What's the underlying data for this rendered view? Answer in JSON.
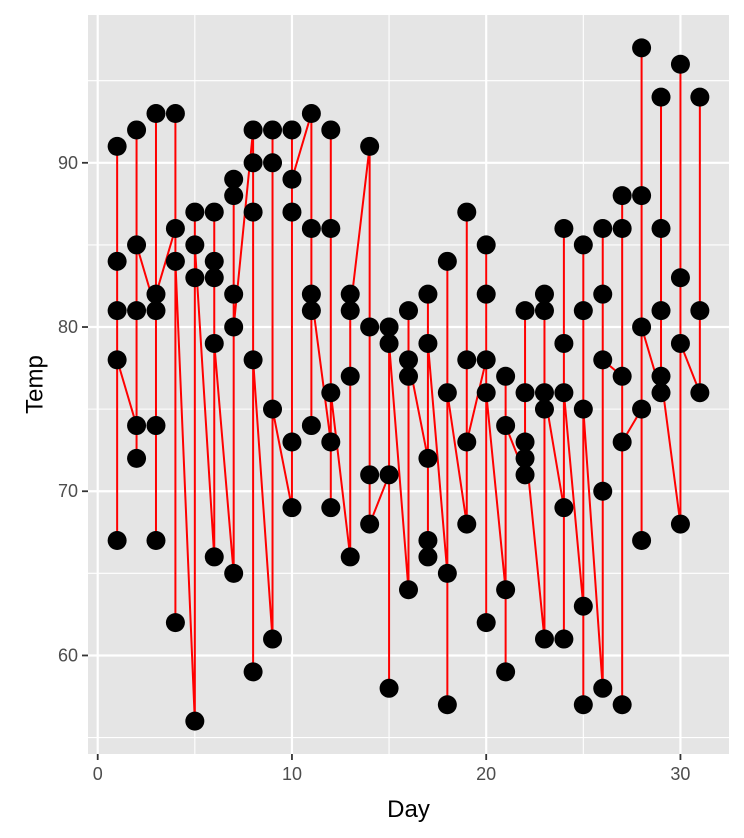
{
  "chart_data": {
    "type": "scatter",
    "title": "",
    "xlabel": "Day",
    "ylabel": "Temp",
    "xlim": [
      -0.5,
      32.5
    ],
    "ylim": [
      54.0,
      99.0
    ],
    "x_major_ticks": [
      0,
      10,
      20,
      30
    ],
    "x_minor_ticks": [
      5,
      15,
      25
    ],
    "y_major_ticks": [
      60,
      70,
      80,
      90
    ],
    "y_minor_ticks": [
      55,
      65,
      75,
      85,
      95
    ],
    "grid": true,
    "panel_color": "#e5e5e5",
    "grid_color": "#ffffff",
    "point_color": "#000000",
    "line_color": "#ff0000",
    "points": [
      [
        1,
        67
      ],
      [
        1,
        78
      ],
      [
        1,
        81
      ],
      [
        1,
        84
      ],
      [
        1,
        91
      ],
      [
        2,
        72
      ],
      [
        2,
        74
      ],
      [
        2,
        81
      ],
      [
        2,
        85
      ],
      [
        2,
        92
      ],
      [
        3,
        67
      ],
      [
        3,
        74
      ],
      [
        3,
        81
      ],
      [
        3,
        82
      ],
      [
        3,
        93
      ],
      [
        4,
        62
      ],
      [
        4,
        84
      ],
      [
        4,
        86
      ],
      [
        4,
        93
      ],
      [
        5,
        56
      ],
      [
        5,
        83
      ],
      [
        5,
        85
      ],
      [
        5,
        87
      ],
      [
        6,
        66
      ],
      [
        6,
        79
      ],
      [
        6,
        83
      ],
      [
        6,
        84
      ],
      [
        6,
        87
      ],
      [
        7,
        65
      ],
      [
        7,
        80
      ],
      [
        7,
        82
      ],
      [
        7,
        88
      ],
      [
        7,
        89
      ],
      [
        8,
        59
      ],
      [
        8,
        78
      ],
      [
        8,
        87
      ],
      [
        8,
        90
      ],
      [
        8,
        92
      ],
      [
        9,
        61
      ],
      [
        9,
        75
      ],
      [
        9,
        90
      ],
      [
        9,
        92
      ],
      [
        10,
        69
      ],
      [
        10,
        73
      ],
      [
        10,
        87
      ],
      [
        10,
        89
      ],
      [
        10,
        92
      ],
      [
        11,
        74
      ],
      [
        11,
        81
      ],
      [
        11,
        82
      ],
      [
        11,
        86
      ],
      [
        11,
        93
      ],
      [
        12,
        69
      ],
      [
        12,
        73
      ],
      [
        12,
        76
      ],
      [
        12,
        86
      ],
      [
        12,
        92
      ],
      [
        13,
        66
      ],
      [
        13,
        77
      ],
      [
        13,
        81
      ],
      [
        13,
        82
      ],
      [
        14,
        68
      ],
      [
        14,
        71
      ],
      [
        14,
        80
      ],
      [
        14,
        91
      ],
      [
        15,
        58
      ],
      [
        15,
        71
      ],
      [
        15,
        79
      ],
      [
        15,
        80
      ],
      [
        16,
        64
      ],
      [
        16,
        77
      ],
      [
        16,
        78
      ],
      [
        16,
        81
      ],
      [
        17,
        66
      ],
      [
        17,
        67
      ],
      [
        17,
        72
      ],
      [
        17,
        79
      ],
      [
        17,
        82
      ],
      [
        18,
        57
      ],
      [
        18,
        65
      ],
      [
        18,
        76
      ],
      [
        18,
        84
      ],
      [
        19,
        68
      ],
      [
        19,
        73
      ],
      [
        19,
        78
      ],
      [
        19,
        87
      ],
      [
        20,
        62
      ],
      [
        20,
        76
      ],
      [
        20,
        78
      ],
      [
        20,
        82
      ],
      [
        20,
        85
      ],
      [
        21,
        59
      ],
      [
        21,
        64
      ],
      [
        21,
        74
      ],
      [
        21,
        77
      ],
      [
        22,
        71
      ],
      [
        22,
        72
      ],
      [
        22,
        73
      ],
      [
        22,
        76
      ],
      [
        22,
        81
      ],
      [
        23,
        61
      ],
      [
        23,
        75
      ],
      [
        23,
        76
      ],
      [
        23,
        81
      ],
      [
        23,
        82
      ],
      [
        24,
        61
      ],
      [
        24,
        69
      ],
      [
        24,
        76
      ],
      [
        24,
        79
      ],
      [
        24,
        86
      ],
      [
        25,
        57
      ],
      [
        25,
        63
      ],
      [
        25,
        75
      ],
      [
        25,
        81
      ],
      [
        25,
        85
      ],
      [
        26,
        58
      ],
      [
        26,
        70
      ],
      [
        26,
        78
      ],
      [
        26,
        82
      ],
      [
        26,
        86
      ],
      [
        27,
        57
      ],
      [
        27,
        73
      ],
      [
        27,
        77
      ],
      [
        27,
        86
      ],
      [
        27,
        88
      ],
      [
        28,
        67
      ],
      [
        28,
        75
      ],
      [
        28,
        80
      ],
      [
        28,
        88
      ],
      [
        28,
        97
      ],
      [
        29,
        76
      ],
      [
        29,
        77
      ],
      [
        29,
        81
      ],
      [
        29,
        86
      ],
      [
        29,
        94
      ],
      [
        30,
        68
      ],
      [
        30,
        79
      ],
      [
        30,
        83
      ],
      [
        30,
        96
      ],
      [
        31,
        76
      ],
      [
        31,
        81
      ],
      [
        31,
        94
      ]
    ],
    "line_path": [
      [
        1,
        67
      ],
      [
        1,
        91
      ],
      [
        1,
        84
      ],
      [
        1,
        81
      ],
      [
        1,
        78
      ],
      [
        2,
        74
      ],
      [
        2,
        92
      ],
      [
        2,
        72
      ],
      [
        2,
        81
      ],
      [
        2,
        85
      ],
      [
        3,
        81
      ],
      [
        3,
        93
      ],
      [
        3,
        67
      ],
      [
        3,
        74
      ],
      [
        3,
        82
      ],
      [
        4,
        86
      ],
      [
        4,
        93
      ],
      [
        4,
        62
      ],
      [
        4,
        84
      ],
      [
        5,
        56
      ],
      [
        5,
        87
      ],
      [
        5,
        83
      ],
      [
        5,
        85
      ],
      [
        6,
        66
      ],
      [
        6,
        84
      ],
      [
        6,
        87
      ],
      [
        6,
        83
      ],
      [
        6,
        79
      ],
      [
        7,
        65
      ],
      [
        7,
        89
      ],
      [
        7,
        88
      ],
      [
        7,
        82
      ],
      [
        7,
        80
      ],
      [
        8,
        92
      ],
      [
        8,
        59
      ],
      [
        8,
        87
      ],
      [
        8,
        90
      ],
      [
        8,
        78
      ],
      [
        9,
        61
      ],
      [
        9,
        92
      ],
      [
        9,
        90
      ],
      [
        9,
        75
      ],
      [
        10,
        69
      ],
      [
        10,
        92
      ],
      [
        10,
        73
      ],
      [
        10,
        87
      ],
      [
        10,
        89
      ],
      [
        11,
        93
      ],
      [
        11,
        74
      ],
      [
        11,
        86
      ],
      [
        11,
        81
      ],
      [
        11,
        82
      ],
      [
        12,
        73
      ],
      [
        12,
        92
      ],
      [
        12,
        69
      ],
      [
        12,
        86
      ],
      [
        12,
        76
      ],
      [
        13,
        66
      ],
      [
        13,
        82
      ],
      [
        13,
        77
      ],
      [
        13,
        81
      ],
      [
        14,
        91
      ],
      [
        14,
        80
      ],
      [
        14,
        71
      ],
      [
        14,
        68
      ],
      [
        15,
        71
      ],
      [
        15,
        80
      ],
      [
        15,
        58
      ],
      [
        15,
        79
      ],
      [
        16,
        64
      ],
      [
        16,
        81
      ],
      [
        16,
        77
      ],
      [
        16,
        78
      ],
      [
        17,
        72
      ],
      [
        17,
        82
      ],
      [
        17,
        66
      ],
      [
        17,
        67
      ],
      [
        17,
        79
      ],
      [
        18,
        65
      ],
      [
        18,
        84
      ],
      [
        18,
        57
      ],
      [
        18,
        76
      ],
      [
        19,
        68
      ],
      [
        19,
        87
      ],
      [
        19,
        78
      ],
      [
        19,
        73
      ],
      [
        20,
        78
      ],
      [
        20,
        85
      ],
      [
        20,
        62
      ],
      [
        20,
        82
      ],
      [
        20,
        76
      ],
      [
        21,
        64
      ],
      [
        21,
        77
      ],
      [
        21,
        59
      ],
      [
        21,
        74
      ],
      [
        22,
        71
      ],
      [
        22,
        81
      ],
      [
        22,
        72
      ],
      [
        22,
        76
      ],
      [
        22,
        73
      ],
      [
        23,
        61
      ],
      [
        23,
        82
      ],
      [
        23,
        75
      ],
      [
        23,
        81
      ],
      [
        23,
        76
      ],
      [
        24,
        69
      ],
      [
        24,
        86
      ],
      [
        24,
        61
      ],
      [
        24,
        79
      ],
      [
        24,
        76
      ],
      [
        25,
        63
      ],
      [
        25,
        85
      ],
      [
        25,
        57
      ],
      [
        25,
        81
      ],
      [
        25,
        75
      ],
      [
        26,
        58
      ],
      [
        26,
        86
      ],
      [
        26,
        70
      ],
      [
        26,
        82
      ],
      [
        26,
        78
      ],
      [
        27,
        77
      ],
      [
        27,
        88
      ],
      [
        27,
        57
      ],
      [
        27,
        86
      ],
      [
        27,
        73
      ],
      [
        28,
        75
      ],
      [
        28,
        97
      ],
      [
        28,
        67
      ],
      [
        28,
        88
      ],
      [
        28,
        80
      ],
      [
        29,
        76
      ],
      [
        29,
        94
      ],
      [
        29,
        81
      ],
      [
        29,
        86
      ],
      [
        29,
        77
      ],
      [
        30,
        68
      ],
      [
        30,
        96
      ],
      [
        30,
        83
      ],
      [
        30,
        79
      ],
      [
        31,
        76
      ],
      [
        31,
        94
      ],
      [
        31,
        81
      ]
    ]
  }
}
